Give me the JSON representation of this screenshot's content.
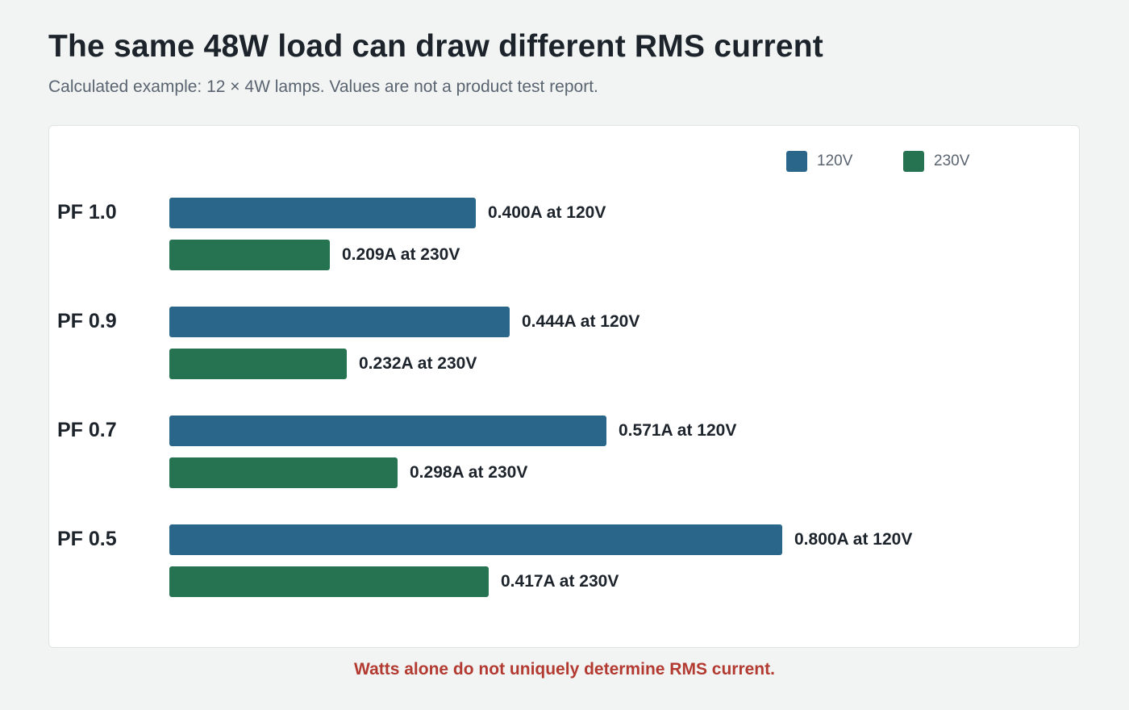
{
  "header": {
    "title": "The same 48W load can draw different RMS current",
    "subtitle": "Calculated example: 12 × 4W lamps. Values are not a product test report."
  },
  "footnote": "Watts alone do not uniquely determine RMS current.",
  "colors": {
    "v120": "#29668a",
    "v230": "#267352",
    "footnote": "#b23a31"
  },
  "chart_data": {
    "type": "bar",
    "orientation": "horizontal",
    "categories": [
      "PF 1.0",
      "PF 0.9",
      "PF 0.7",
      "PF 0.5"
    ],
    "series": [
      {
        "name": "120V",
        "color": "#29668a",
        "values": [
          0.4,
          0.444,
          0.571,
          0.8
        ],
        "labels": [
          "0.400A at 120V",
          "0.444A at 120V",
          "0.571A at 120V",
          "0.800A at 120V"
        ]
      },
      {
        "name": "230V",
        "color": "#267352",
        "values": [
          0.209,
          0.232,
          0.298,
          0.417
        ],
        "labels": [
          "0.209A at 230V",
          "0.232A at 230V",
          "0.298A at 230V",
          "0.417A at 230V"
        ]
      }
    ],
    "legend": "top-right",
    "grid": false
  }
}
